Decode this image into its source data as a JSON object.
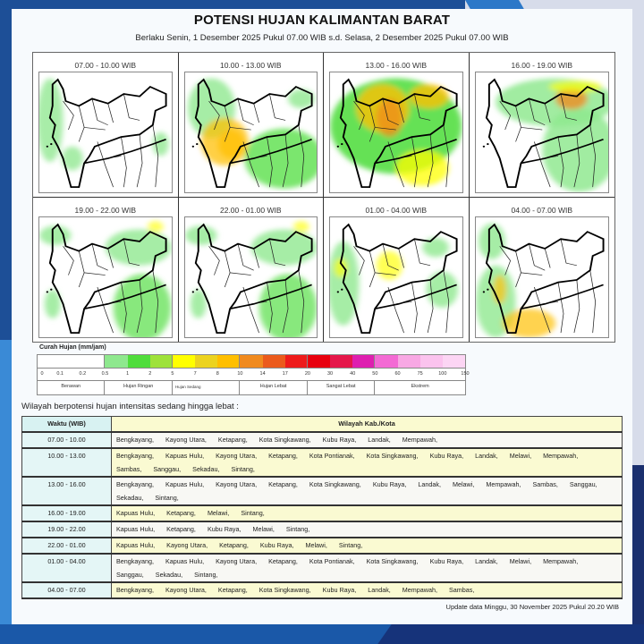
{
  "header": {
    "title": "POTENSI HUJAN KALIMANTAN BARAT",
    "subtitle": "Berlaku Senin, 1 Desember 2025 Pukul 07.00 WIB s.d. Selasa, 2 Desember 2025 Pukul 07.00 WIB"
  },
  "maps": [
    {
      "label": "07.00 - 10.00  WIB",
      "intensity": "low"
    },
    {
      "label": "10.00 - 13.00  WIB",
      "intensity": "medium-west"
    },
    {
      "label": "13.00 - 16.00  WIB",
      "intensity": "high"
    },
    {
      "label": "16.00 - 19.00  WIB",
      "intensity": "medium-northeast"
    },
    {
      "label": "19.00 - 22.00  WIB",
      "intensity": "low-east"
    },
    {
      "label": "22.00 - 01.00  WIB",
      "intensity": "low-east"
    },
    {
      "label": "01.00 - 04.00  WIB",
      "intensity": "low-west"
    },
    {
      "label": "04.00 - 07.00  WIB",
      "intensity": "low-southwest"
    }
  ],
  "legend": {
    "title": "Curah Hujan (mm/jam)",
    "colors": [
      "#ffffff",
      "#ffffff",
      "#ffffff",
      "#8ee88e",
      "#4fdd3c",
      "#9ee23a",
      "#ffff00",
      "#ecd31f",
      "#ffbf00",
      "#f08a1e",
      "#eb5a1c",
      "#ee1b1b",
      "#e8000e",
      "#e5174b",
      "#de1fb0",
      "#f36ad4",
      "#f8a8e4",
      "#fbc3ee",
      "#fcd5f4"
    ],
    "ticks": [
      "0",
      "0.1",
      "0.2",
      "0.5",
      "1",
      "2",
      "5",
      "7",
      "8",
      "10",
      "14",
      "17",
      "20",
      "30",
      "40",
      "50",
      "60",
      "75",
      "100",
      "150"
    ],
    "categories": [
      {
        "label": "Berawan",
        "from": 0,
        "to": 3
      },
      {
        "label": "Hujan Ringan",
        "from": 3,
        "to": 6
      },
      {
        "label": "Hujan Sedang",
        "from": 6,
        "to": 9
      },
      {
        "label": "Hujan Lebat",
        "from": 9,
        "to": 12
      },
      {
        "label": "Sangat Lebat",
        "from": 12,
        "to": 15
      },
      {
        "label": "Ekstrem",
        "from": 15,
        "to": 19
      }
    ]
  },
  "regions": {
    "heading": "Wilayah berpotensi hujan intensitas sedang hingga lebat :",
    "columns": [
      "Waktu (WIB)",
      "Wilayah Kab./Kota"
    ],
    "rows": [
      {
        "time": "07.00 - 10.00",
        "areas": [
          "Bengkayang,",
          "Kayong Utara,",
          "Ketapang,",
          "Kota Singkawang,",
          "Kubu Raya,",
          "Landak,",
          "Mempawah,"
        ]
      },
      {
        "time": "10.00 - 13.00",
        "areas": [
          "Bengkayang,",
          "Kapuas Hulu,",
          "Kayong Utara,",
          "Ketapang,",
          "Kota Pontianak,",
          "Kota Singkawang,",
          "Kubu Raya,",
          "Landak,",
          "Melawi,",
          "Mempawah,",
          "Sambas,",
          "Sanggau,",
          "Sekadau,",
          "Sintang,"
        ]
      },
      {
        "time": "13.00 - 16.00",
        "areas": [
          "Bengkayang,",
          "Kapuas Hulu,",
          "Kayong Utara,",
          "Ketapang,",
          "Kota Singkawang,",
          "Kubu Raya,",
          "Landak,",
          "Melawi,",
          "Mempawah,",
          "Sambas,",
          "Sanggau,",
          "Sekadau,",
          "Sintang,"
        ]
      },
      {
        "time": "16.00 - 19.00",
        "areas": [
          "Kapuas Hulu,",
          "Ketapang,",
          "Melawi,",
          "Sintang,"
        ]
      },
      {
        "time": "19.00 - 22.00",
        "areas": [
          "Kapuas Hulu,",
          "Ketapang,",
          "Kubu Raya,",
          "Melawi,",
          "Sintang,"
        ]
      },
      {
        "time": "22.00 - 01.00",
        "areas": [
          "Kapuas Hulu,",
          "Kayong Utara,",
          "Ketapang,",
          "Kubu Raya,",
          "Melawi,",
          "Sintang,"
        ]
      },
      {
        "time": "01.00 - 04.00",
        "areas": [
          "Bengkayang,",
          "Kapuas Hulu,",
          "Kayong Utara,",
          "Ketapang,",
          "Kota Pontianak,",
          "Kota Singkawang,",
          "Kubu Raya,",
          "Landak,",
          "Melawi,",
          "Mempawah,",
          "Sanggau,",
          "Sekadau,",
          "Sintang,"
        ]
      },
      {
        "time": "04.00 - 07.00",
        "areas": [
          "Bengkayang,",
          "Kayong Utara,",
          "Ketapang,",
          "Kota Singkawang,",
          "Kubu Raya,",
          "Landak,",
          "Mempawah,",
          "Sambas,"
        ]
      }
    ]
  },
  "footer": {
    "update": "Update data Minggu, 30 November 2025 Pukul 20.20 WIB"
  }
}
